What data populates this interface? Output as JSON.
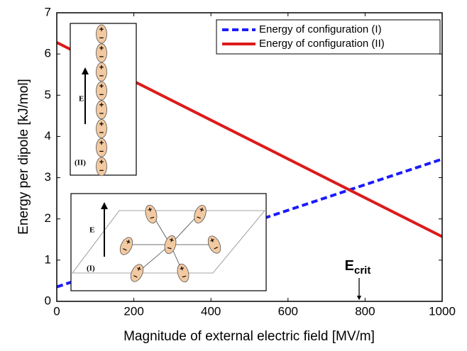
{
  "chart_data": {
    "type": "line",
    "x_label": "Magnitude of external electric field [MV/m]",
    "y_label": "Energy per dipole [kJ/mol]",
    "x": [
      0,
      1000
    ],
    "series": [
      {
        "name": "Energy of configuration (I)",
        "color": "#1a1aff",
        "dashed": true,
        "values": [
          0.35,
          3.45
        ]
      },
      {
        "name": "Energy of configuration (II)",
        "color": "#dd1a1a",
        "dashed": false,
        "values": [
          6.28,
          1.57
        ]
      }
    ],
    "xlim": [
      0,
      1000
    ],
    "xticks": [
      0,
      200,
      400,
      600,
      800,
      1000
    ],
    "ylim": [
      0,
      7
    ],
    "yticks": [
      0,
      1,
      2,
      3,
      4,
      5,
      6,
      7
    ],
    "grid": false,
    "legend": "upper right",
    "annotation": {
      "text": "E",
      "subscript": "crit"
    }
  },
  "inset_top": {
    "field_label": "E",
    "config_label": "(II)",
    "plus": "+",
    "minus": "−"
  },
  "inset_bottom": {
    "field_label": "E",
    "config_label": "(I)",
    "plus": "+",
    "minus": "−"
  }
}
